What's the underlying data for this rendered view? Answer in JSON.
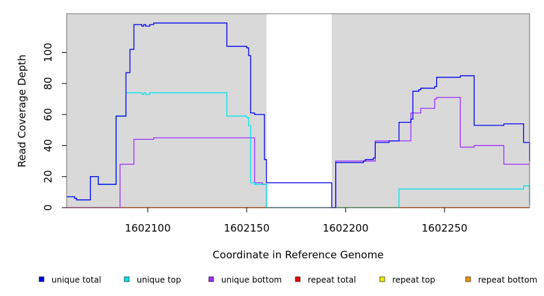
{
  "chart_data": {
    "type": "line",
    "title": "",
    "xlabel": "Coordinate in Reference Genome",
    "ylabel": "Read Coverage Depth",
    "xlim": [
      1602059,
      1602293
    ],
    "ylim": [
      0,
      125
    ],
    "x_ticks": [
      1602100,
      1602150,
      1602200,
      1602250
    ],
    "y_ticks": [
      0,
      20,
      40,
      60,
      80,
      100
    ],
    "x_tick_labels": [
      "1602100",
      "1602150",
      "1602200",
      "1602250"
    ],
    "y_tick_labels": [
      "0",
      "20",
      "40",
      "60",
      "80",
      "100"
    ],
    "grid": false,
    "background_color": "#d9d9d9",
    "gap_region": [
      1602160,
      1602193
    ],
    "gap_color": "#ffffff",
    "legend_position": "bottom",
    "series": [
      {
        "name": "unique total",
        "color": "#0000ee",
        "x": [
          1602059,
          1602063,
          1602064,
          1602071,
          1602075,
          1602084,
          1602089,
          1602091,
          1602093,
          1602097,
          1602098,
          1602099,
          1602101,
          1602103,
          1602137,
          1602140,
          1602150,
          1602151,
          1602152,
          1602154,
          1602159,
          1602160,
          1602193,
          1602195,
          1602209,
          1602210,
          1602214,
          1602215,
          1602222,
          1602227,
          1602233,
          1602234,
          1602237,
          1602238,
          1602245,
          1602246,
          1602258,
          1602265,
          1602280,
          1602290,
          1602293
        ],
        "y": [
          7,
          6,
          5,
          20,
          15,
          59,
          87,
          102,
          118,
          117,
          118,
          117,
          118,
          119,
          119,
          104,
          103,
          98,
          61,
          60,
          31,
          16,
          0,
          29,
          30,
          31,
          32,
          42,
          43,
          55,
          57,
          75,
          76,
          77,
          78,
          84,
          85,
          53,
          54,
          42,
          30
        ]
      },
      {
        "name": "unique top",
        "color": "#00e5ee",
        "x": [
          1602059,
          1602063,
          1602064,
          1602071,
          1602075,
          1602084,
          1602089,
          1602093,
          1602097,
          1602098,
          1602099,
          1602101,
          1602137,
          1602140,
          1602150,
          1602151,
          1602152,
          1602154,
          1602159,
          1602160,
          1602222,
          1602227,
          1602290,
          1602293
        ],
        "y": [
          7,
          6,
          5,
          20,
          15,
          59,
          74,
          74,
          73,
          74,
          73,
          74,
          74,
          59,
          58,
          53,
          16,
          15,
          15,
          0,
          0,
          12,
          14,
          2
        ]
      },
      {
        "name": "unique bottom",
        "color": "#9b30ff",
        "x": [
          1602059,
          1602086,
          1602093,
          1602103,
          1602152,
          1602154,
          1602158,
          1602160,
          1602193,
          1602195,
          1602215,
          1602233,
          1602238,
          1602245,
          1602246,
          1602258,
          1602265,
          1602280,
          1602293
        ],
        "y": [
          0,
          28,
          44,
          45,
          45,
          16,
          15,
          0,
          0,
          30,
          43,
          61,
          64,
          70,
          71,
          39,
          40,
          28,
          28
        ]
      },
      {
        "name": "repeat total",
        "color": "#ee0000",
        "x": [
          1602059,
          1602293
        ],
        "y": [
          0,
          0
        ]
      },
      {
        "name": "repeat top",
        "color": "#eeee00",
        "x": [
          1602059,
          1602293
        ],
        "y": [
          0,
          0
        ]
      },
      {
        "name": "repeat bottom",
        "color": "#ee9a00",
        "x": [
          1602059,
          1602293
        ],
        "y": [
          0,
          0
        ]
      }
    ]
  }
}
